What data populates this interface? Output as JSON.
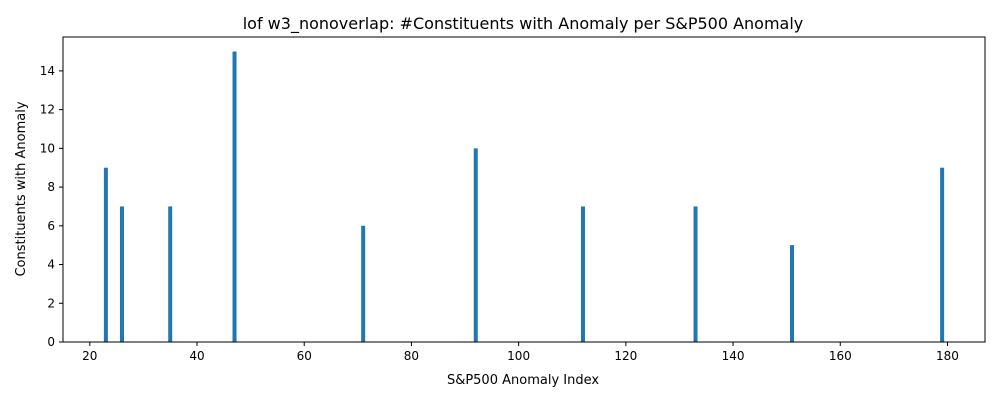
{
  "chart_data": {
    "type": "bar",
    "title": "lof w3_nonoverlap: #Constituents with Anomaly per S&P500 Anomaly",
    "xlabel": "S&P500 Anomaly Index",
    "ylabel": "Constituents with Anomaly",
    "x": [
      23,
      26,
      35,
      47,
      71,
      92,
      112,
      133,
      151,
      179
    ],
    "values": [
      9,
      7,
      7,
      15,
      6,
      10,
      7,
      7,
      5,
      9
    ],
    "xlim": [
      15,
      187
    ],
    "ylim": [
      0,
      15.75
    ],
    "xticks": [
      20,
      40,
      60,
      80,
      100,
      120,
      140,
      160,
      180
    ],
    "yticks": [
      0,
      2,
      4,
      6,
      8,
      10,
      12,
      14
    ],
    "bar_color": "#1f77b4",
    "grid": false,
    "legend": "none"
  }
}
